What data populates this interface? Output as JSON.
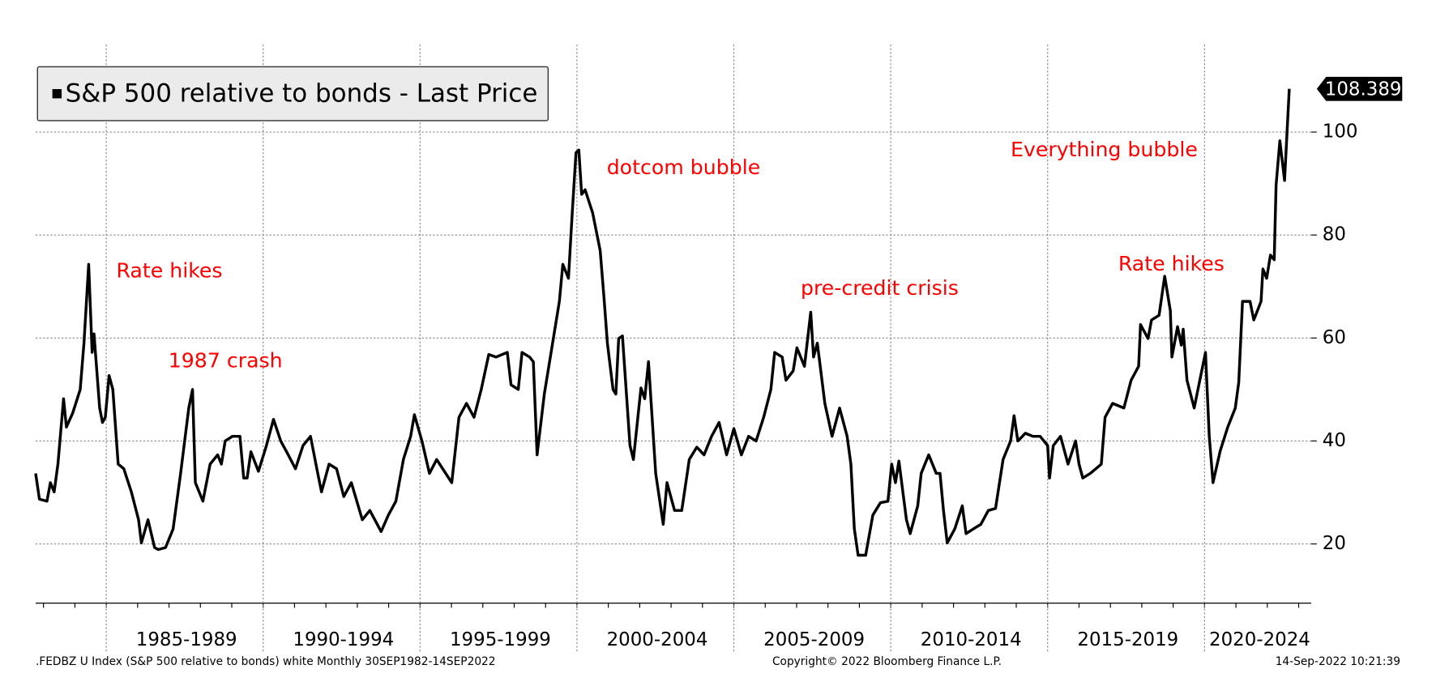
{
  "chart_data": {
    "type": "line",
    "legend": "top-left",
    "grid": true,
    "xlim": [
      1982.75,
      2023.4
    ],
    "ylim": [
      8.5,
      117
    ],
    "xticks": [
      {
        "value": 1985,
        "label": "1985-1989"
      },
      {
        "value": 1990,
        "label": "1990-1994"
      },
      {
        "value": 1995,
        "label": "1995-1999"
      },
      {
        "value": 2000,
        "label": "2000-2004"
      },
      {
        "value": 2005,
        "label": "2005-2009"
      },
      {
        "value": 2010,
        "label": "2010-2014"
      },
      {
        "value": 2015,
        "label": "2015-2019"
      },
      {
        "value": 2020,
        "label": "2020-2024"
      }
    ],
    "yticks": [
      20,
      40,
      60,
      80,
      100
    ],
    "x": [
      1982.75,
      1982.87,
      1983.11,
      1983.22,
      1983.34,
      1983.46,
      1983.64,
      1983.73,
      1983.93,
      1984.17,
      1984.29,
      1984.44,
      1984.55,
      1984.61,
      1984.79,
      1984.88,
      1984.97,
      1985.09,
      1985.21,
      1985.38,
      1985.56,
      1985.8,
      1986.03,
      1986.12,
      1986.33,
      1986.54,
      1986.66,
      1986.89,
      1987.13,
      1987.37,
      1987.63,
      1987.75,
      1987.84,
      1988.08,
      1988.31,
      1988.55,
      1988.67,
      1988.79,
      1989.02,
      1989.26,
      1989.38,
      1989.49,
      1989.61,
      1989.85,
      1990.09,
      1990.33,
      1990.56,
      1990.8,
      1991.03,
      1991.27,
      1991.51,
      1991.74,
      1991.86,
      1992.1,
      1992.34,
      1992.57,
      1992.81,
      1993.16,
      1993.4,
      1993.76,
      1993.99,
      1994.23,
      1994.47,
      1994.7,
      1994.82,
      1995.06,
      1995.3,
      1995.53,
      1996.01,
      1996.24,
      1996.48,
      1996.72,
      1996.95,
      1997.19,
      1997.42,
      1997.78,
      1997.9,
      1998.13,
      1998.25,
      1998.49,
      1998.61,
      1998.73,
      1998.96,
      1999.2,
      1999.44,
      1999.55,
      1999.73,
      1999.85,
      1999.97,
      2000.06,
      2000.15,
      2000.26,
      2000.5,
      2000.74,
      2000.86,
      2000.97,
      2001.15,
      2001.24,
      2001.33,
      2001.45,
      2001.69,
      2001.8,
      2002.04,
      2002.16,
      2002.28,
      2002.51,
      2002.75,
      2002.87,
      2003.11,
      2003.34,
      2003.58,
      2003.82,
      2004.05,
      2004.29,
      2004.53,
      2004.77,
      2005.0,
      2005.24,
      2005.47,
      2005.71,
      2005.95,
      2006.18,
      2006.3,
      2006.54,
      2006.66,
      2006.89,
      2007.01,
      2007.25,
      2007.45,
      2007.54,
      2007.66,
      2007.9,
      2008.13,
      2008.37,
      2008.61,
      2008.73,
      2008.84,
      2008.96,
      2009.2,
      2009.43,
      2009.67,
      2009.91,
      2010.03,
      2010.15,
      2010.26,
      2010.5,
      2010.62,
      2010.86,
      2010.97,
      2011.21,
      2011.45,
      2011.57,
      2011.68,
      2011.8,
      2012.04,
      2012.28,
      2012.4,
      2012.63,
      2012.87,
      2013.11,
      2013.34,
      2013.58,
      2013.82,
      2013.93,
      2014.05,
      2014.29,
      2014.53,
      2014.76,
      2015.0,
      2015.06,
      2015.18,
      2015.41,
      2015.65,
      2015.89,
      2016.0,
      2016.12,
      2016.36,
      2016.71,
      2016.83,
      2017.07,
      2017.43,
      2017.66,
      2017.9,
      2017.96,
      2018.2,
      2018.31,
      2018.55,
      2018.73,
      2018.91,
      2018.96,
      2019.14,
      2019.26,
      2019.32,
      2019.44,
      2019.67,
      2019.79,
      2020.03,
      2020.15,
      2020.27,
      2020.5,
      2020.74,
      2020.98,
      2021.09,
      2021.21,
      2021.45,
      2021.57,
      2021.8,
      2021.86,
      2021.98,
      2022.1,
      2022.22,
      2022.28,
      2022.4,
      2022.55,
      2022.7
    ],
    "series": [
      {
        "name": "S&P 500 relative to bonds - Last Price",
        "color": "#000000",
        "values": [
          33.7,
          28.7,
          28.3,
          31.9,
          30.1,
          35.5,
          48.2,
          42.7,
          45.4,
          50.0,
          59.0,
          74.3,
          57.2,
          60.8,
          46.4,
          43.6,
          44.6,
          52.7,
          50.0,
          35.5,
          34.6,
          30.1,
          24.7,
          20.2,
          24.7,
          19.3,
          18.9,
          19.3,
          22.9,
          33.7,
          46.4,
          50.0,
          31.9,
          28.3,
          35.5,
          37.3,
          35.5,
          40.0,
          40.9,
          40.9,
          32.8,
          32.8,
          37.9,
          34.1,
          38.8,
          44.2,
          40.0,
          37.3,
          34.6,
          39.1,
          40.9,
          33.7,
          30.1,
          35.5,
          34.6,
          29.2,
          31.9,
          24.7,
          26.5,
          22.4,
          25.6,
          28.3,
          36.4,
          40.9,
          45.1,
          40.0,
          33.7,
          36.4,
          31.9,
          44.6,
          47.3,
          44.6,
          50.0,
          56.8,
          56.3,
          57.2,
          50.9,
          50.0,
          57.2,
          56.3,
          55.4,
          37.3,
          49.1,
          58.1,
          67.1,
          74.3,
          71.6,
          84.3,
          96.0,
          96.5,
          87.9,
          88.8,
          84.3,
          77.0,
          68.0,
          59.0,
          50.0,
          49.1,
          59.9,
          60.4,
          39.1,
          36.4,
          50.3,
          48.2,
          55.4,
          33.7,
          23.8,
          31.9,
          26.5,
          26.5,
          36.4,
          38.8,
          37.3,
          40.9,
          43.6,
          37.3,
          42.4,
          37.3,
          40.9,
          40.0,
          44.6,
          50.0,
          57.2,
          56.3,
          51.8,
          53.6,
          58.1,
          54.5,
          65.0,
          56.3,
          59.0,
          47.3,
          40.9,
          46.4,
          40.9,
          35.5,
          22.9,
          17.8,
          17.8,
          25.6,
          28.0,
          28.3,
          35.5,
          31.9,
          36.1,
          24.7,
          22.0,
          27.4,
          33.7,
          37.3,
          33.7,
          33.7,
          26.5,
          20.2,
          22.9,
          27.4,
          22.0,
          22.9,
          23.8,
          26.5,
          26.9,
          36.4,
          40.0,
          44.9,
          40.0,
          41.5,
          40.9,
          40.9,
          39.1,
          32.8,
          39.1,
          40.9,
          35.5,
          40.0,
          35.5,
          32.8,
          33.7,
          35.5,
          44.6,
          47.3,
          46.4,
          51.8,
          54.5,
          62.6,
          59.9,
          63.5,
          64.4,
          72.0,
          65.3,
          56.3,
          62.2,
          58.6,
          61.7,
          51.8,
          46.4,
          50.0,
          57.2,
          40.9,
          31.9,
          38.1,
          42.7,
          46.4,
          51.4,
          67.1,
          67.1,
          63.5,
          67.1,
          73.4,
          71.6,
          76.1,
          75.2,
          89.7,
          98.3,
          90.6,
          108.389
        ]
      }
    ],
    "annotations": [
      {
        "text": "Rate hikes",
        "x": 1985.32,
        "y": 72.9,
        "color": "#ff0000"
      },
      {
        "text": "1987 crash",
        "x": 1986.98,
        "y": 55.4,
        "color": "#ff0000"
      },
      {
        "text": "dotcom bubble",
        "x": 2000.95,
        "y": 92.9,
        "color": "#ff0000"
      },
      {
        "text": "pre-credit crisis",
        "x": 2007.13,
        "y": 69.5,
        "color": "#ff0000"
      },
      {
        "text": "Everything bubble",
        "x": 2013.82,
        "y": 96.4,
        "color": "#ff0000"
      },
      {
        "text": "Rate hikes",
        "x": 2017.25,
        "y": 74.2,
        "color": "#ff0000"
      }
    ],
    "footer": {
      "left": ".FEDBZ U Index (S&P 500 relative to bonds) white  Monthly 30SEP1982-14SEP2022",
      "center": "Copyright© 2022 Bloomberg Finance L.P.",
      "right": "14-Sep-2022 10:21:39"
    }
  }
}
